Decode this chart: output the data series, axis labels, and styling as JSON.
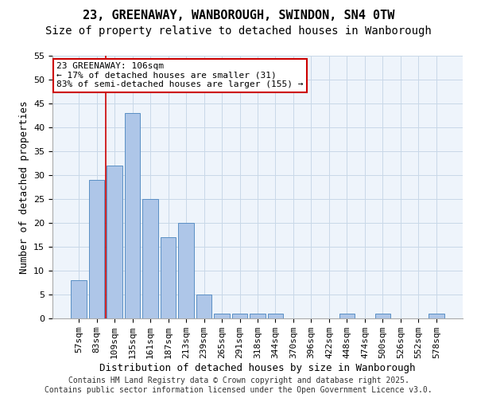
{
  "title1": "23, GREENAWAY, WANBOROUGH, SWINDON, SN4 0TW",
  "title2": "Size of property relative to detached houses in Wanborough",
  "xlabel": "Distribution of detached houses by size in Wanborough",
  "ylabel": "Number of detached properties",
  "categories": [
    "57sqm",
    "83sqm",
    "109sqm",
    "135sqm",
    "161sqm",
    "187sqm",
    "213sqm",
    "239sqm",
    "265sqm",
    "291sqm",
    "318sqm",
    "344sqm",
    "370sqm",
    "396sqm",
    "422sqm",
    "448sqm",
    "474sqm",
    "500sqm",
    "526sqm",
    "552sqm",
    "578sqm"
  ],
  "values": [
    8,
    29,
    32,
    43,
    25,
    17,
    20,
    5,
    1,
    1,
    1,
    1,
    0,
    0,
    0,
    1,
    0,
    1,
    0,
    0,
    1
  ],
  "bar_color": "#aec6e8",
  "bar_edge_color": "#5a8fc4",
  "grid_color": "#c8d8e8",
  "background_color": "#eef4fb",
  "red_line_x": 1.5,
  "annotation_text_line1": "23 GREENAWAY: 106sqm",
  "annotation_text_line2": "← 17% of detached houses are smaller (31)",
  "annotation_text_line3": "83% of semi-detached houses are larger (155) →",
  "annotation_box_color": "#ffffff",
  "annotation_box_edge_color": "#cc0000",
  "red_line_color": "#cc0000",
  "ylim": [
    0,
    55
  ],
  "yticks": [
    0,
    5,
    10,
    15,
    20,
    25,
    30,
    35,
    40,
    45,
    50,
    55
  ],
  "footer_line1": "Contains HM Land Registry data © Crown copyright and database right 2025.",
  "footer_line2": "Contains public sector information licensed under the Open Government Licence v3.0.",
  "title1_fontsize": 11,
  "title2_fontsize": 10,
  "xlabel_fontsize": 9,
  "ylabel_fontsize": 9,
  "tick_fontsize": 8,
  "annotation_fontsize": 8,
  "footer_fontsize": 7
}
